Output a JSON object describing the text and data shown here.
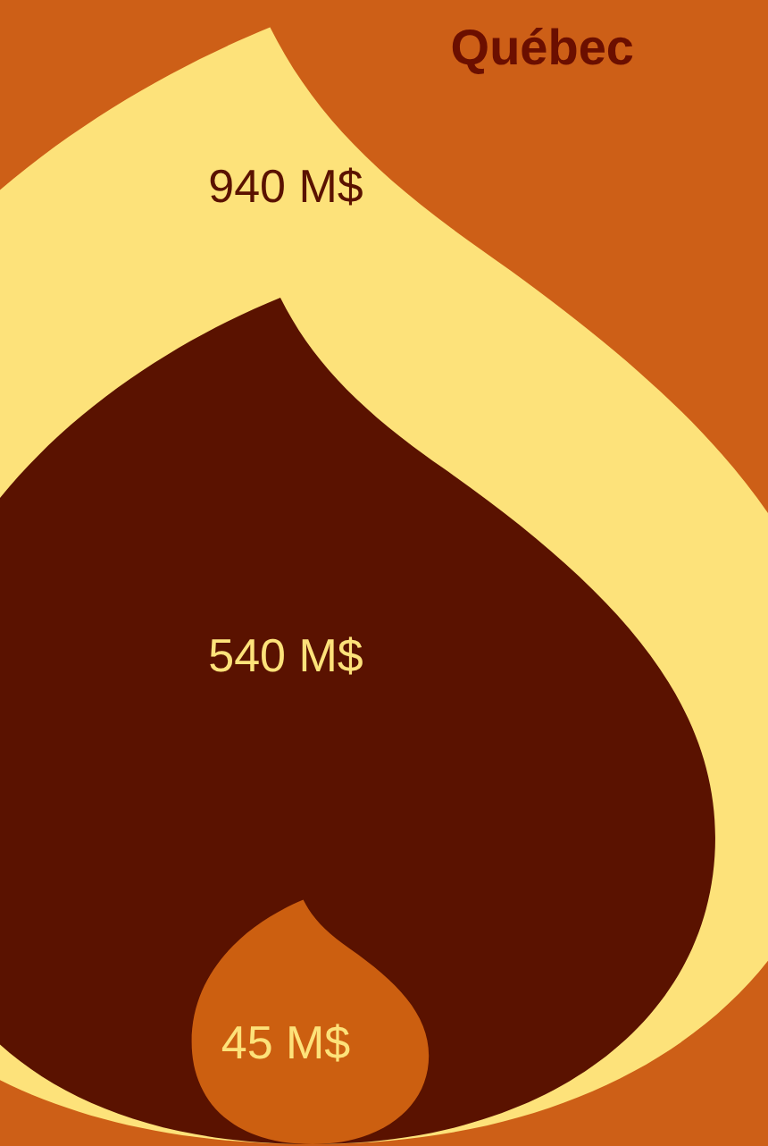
{
  "chart_data": {
    "type": "other",
    "title": "Québec",
    "categories": [
      null,
      null,
      null
    ],
    "values": [
      940,
      540,
      45
    ],
    "colors": [
      "#fde27a",
      "#5a1200",
      "#cc5f10"
    ],
    "value_labels": [
      "940 M$",
      "540 M$",
      "45 M$"
    ]
  }
}
